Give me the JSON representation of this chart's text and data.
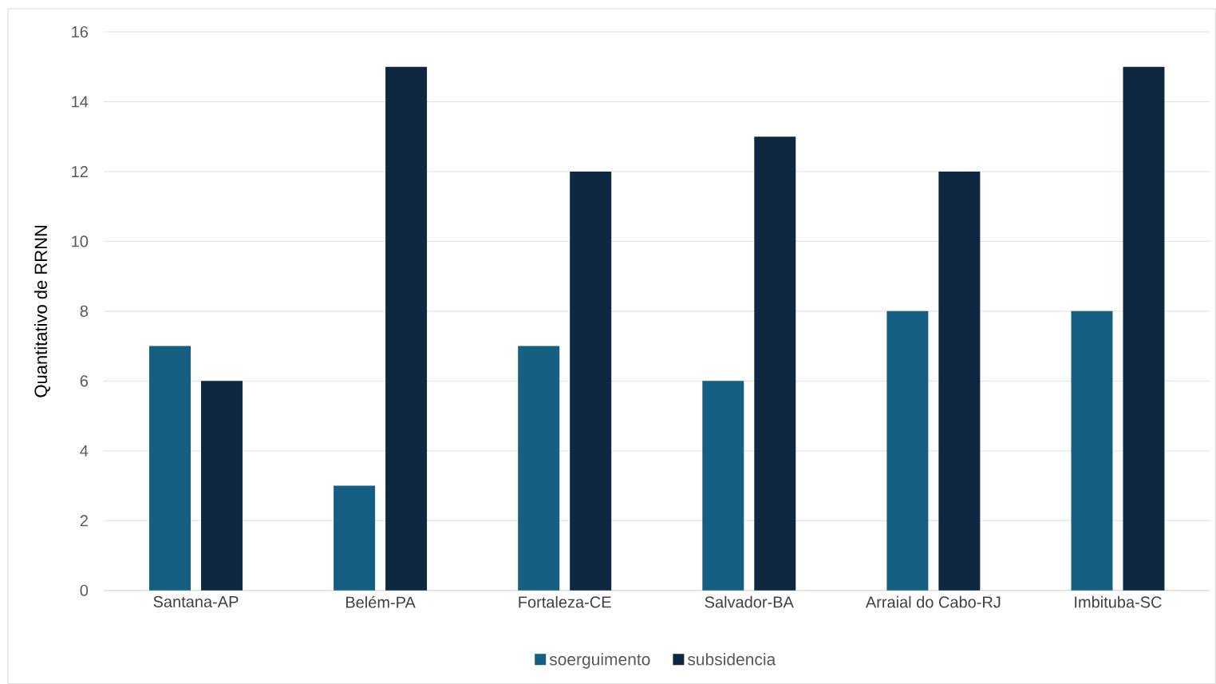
{
  "chart_data": {
    "type": "bar",
    "ylabel": "Quantitativo de RRNN",
    "categories": [
      "Santana-AP",
      "Belém-PA",
      "Fortaleza-CE",
      "Salvador-BA",
      "Arraial do Cabo-RJ",
      "Imbituba-SC"
    ],
    "series": [
      {
        "name": "soerguimento",
        "color": "#156082",
        "values": [
          7,
          3,
          7,
          6,
          8,
          8
        ]
      },
      {
        "name": "subsidencia",
        "color": "#0e2841",
        "values": [
          6,
          15,
          12,
          13,
          12,
          15
        ]
      }
    ],
    "ylim": [
      0,
      16
    ],
    "yticks": [
      0,
      2,
      4,
      6,
      8,
      10,
      12,
      14,
      16
    ],
    "grid": "y",
    "legend": "bottom"
  }
}
